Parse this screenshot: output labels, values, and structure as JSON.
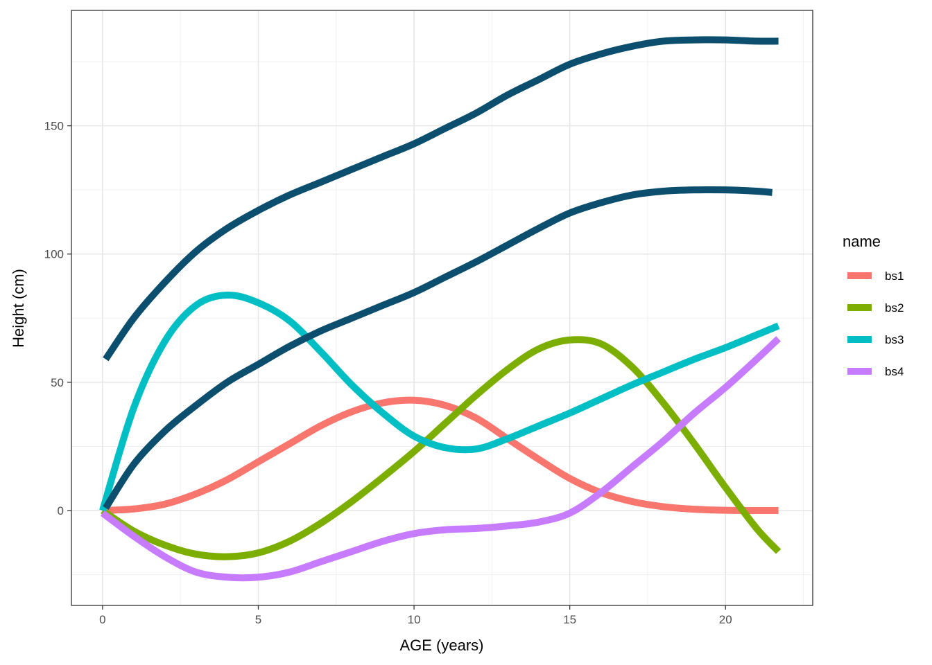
{
  "chart_data": {
    "type": "line",
    "xlabel": "AGE (years)",
    "ylabel": "Height (cm)",
    "xlim": [
      -1,
      22.8
    ],
    "ylim": [
      -37,
      195
    ],
    "x_ticks": [
      0,
      5,
      10,
      15,
      20
    ],
    "y_ticks": [
      0,
      50,
      100,
      150
    ],
    "grid": true,
    "legend": {
      "title": "name",
      "position": "right"
    },
    "series": [
      {
        "name": "bs1",
        "color": "#F8766D",
        "x": [
          0,
          1,
          2,
          3,
          4,
          5,
          6,
          7,
          8,
          9,
          10,
          11,
          12,
          13,
          14,
          15,
          16,
          17,
          18,
          19,
          20,
          21,
          21.7
        ],
        "y": [
          0,
          0.6,
          2.5,
          6.5,
          12,
          19,
          26,
          33,
          38.5,
          42,
          43,
          41,
          36,
          28,
          20,
          12.5,
          7,
          3.5,
          1.5,
          0.5,
          0.1,
          0,
          0
        ]
      },
      {
        "name": "bs2",
        "color": "#7CAE00",
        "x": [
          0,
          1,
          2,
          3,
          4,
          5,
          6,
          7,
          8,
          9,
          10,
          11,
          12,
          13,
          14,
          15,
          16,
          17,
          18,
          19,
          20,
          21,
          21.7
        ],
        "y": [
          0,
          -8,
          -13.5,
          -17,
          -18,
          -16.5,
          -12,
          -5,
          3.5,
          13,
          23,
          34,
          45,
          55,
          63,
          66.5,
          65,
          56,
          42,
          26,
          9,
          -7,
          -16
        ]
      },
      {
        "name": "bs3",
        "color": "#00BFC4",
        "x": [
          0,
          1,
          2,
          3,
          4,
          5,
          6,
          7,
          8,
          9,
          10,
          11,
          12,
          13,
          14,
          15,
          16,
          17,
          18,
          19,
          20,
          21,
          21.7
        ],
        "y": [
          0,
          40,
          66,
          80,
          84,
          81,
          74,
          62,
          49,
          38,
          29,
          24.5,
          24,
          28,
          33,
          38,
          43.5,
          49,
          54,
          59,
          63.5,
          68.5,
          72
        ]
      },
      {
        "name": "bs4",
        "color": "#C77CFF",
        "x": [
          0,
          1,
          2,
          3,
          4,
          5,
          6,
          7,
          8,
          9,
          10,
          11,
          12,
          13,
          14,
          15,
          16,
          17,
          18,
          19,
          20,
          21,
          21.7
        ],
        "y": [
          -1,
          -10,
          -18,
          -24,
          -26,
          -26,
          -24,
          -20,
          -16,
          -12,
          -9,
          -7.5,
          -7,
          -6,
          -4.5,
          -1,
          7,
          17,
          27,
          38,
          48,
          59,
          67
        ]
      },
      {
        "name": "",
        "color": "#0C4E6E",
        "x": [
          0.1,
          1,
          2,
          3,
          4,
          5,
          6,
          7,
          8,
          9,
          10,
          11,
          12,
          13,
          14,
          15,
          16,
          17,
          18,
          19,
          20,
          21,
          21.7
        ],
        "y": [
          59,
          75,
          89,
          101,
          110,
          117,
          123,
          128,
          133,
          138,
          143,
          149,
          155,
          162,
          168,
          174,
          178,
          181,
          183,
          183.5,
          183.5,
          183,
          183
        ]
      },
      {
        "name": "",
        "color": "#0C4E6E",
        "x": [
          0.1,
          1,
          2,
          3,
          4,
          5,
          6,
          7,
          8,
          9,
          10,
          11,
          12,
          13,
          14,
          15,
          16,
          17,
          18,
          19,
          20,
          21,
          21.5
        ],
        "y": [
          1,
          18,
          31,
          41,
          50,
          57,
          64,
          70,
          75,
          80,
          85,
          91,
          97,
          103.5,
          110,
          116,
          120,
          123,
          124.5,
          125,
          125,
          124.5,
          124
        ]
      }
    ]
  }
}
